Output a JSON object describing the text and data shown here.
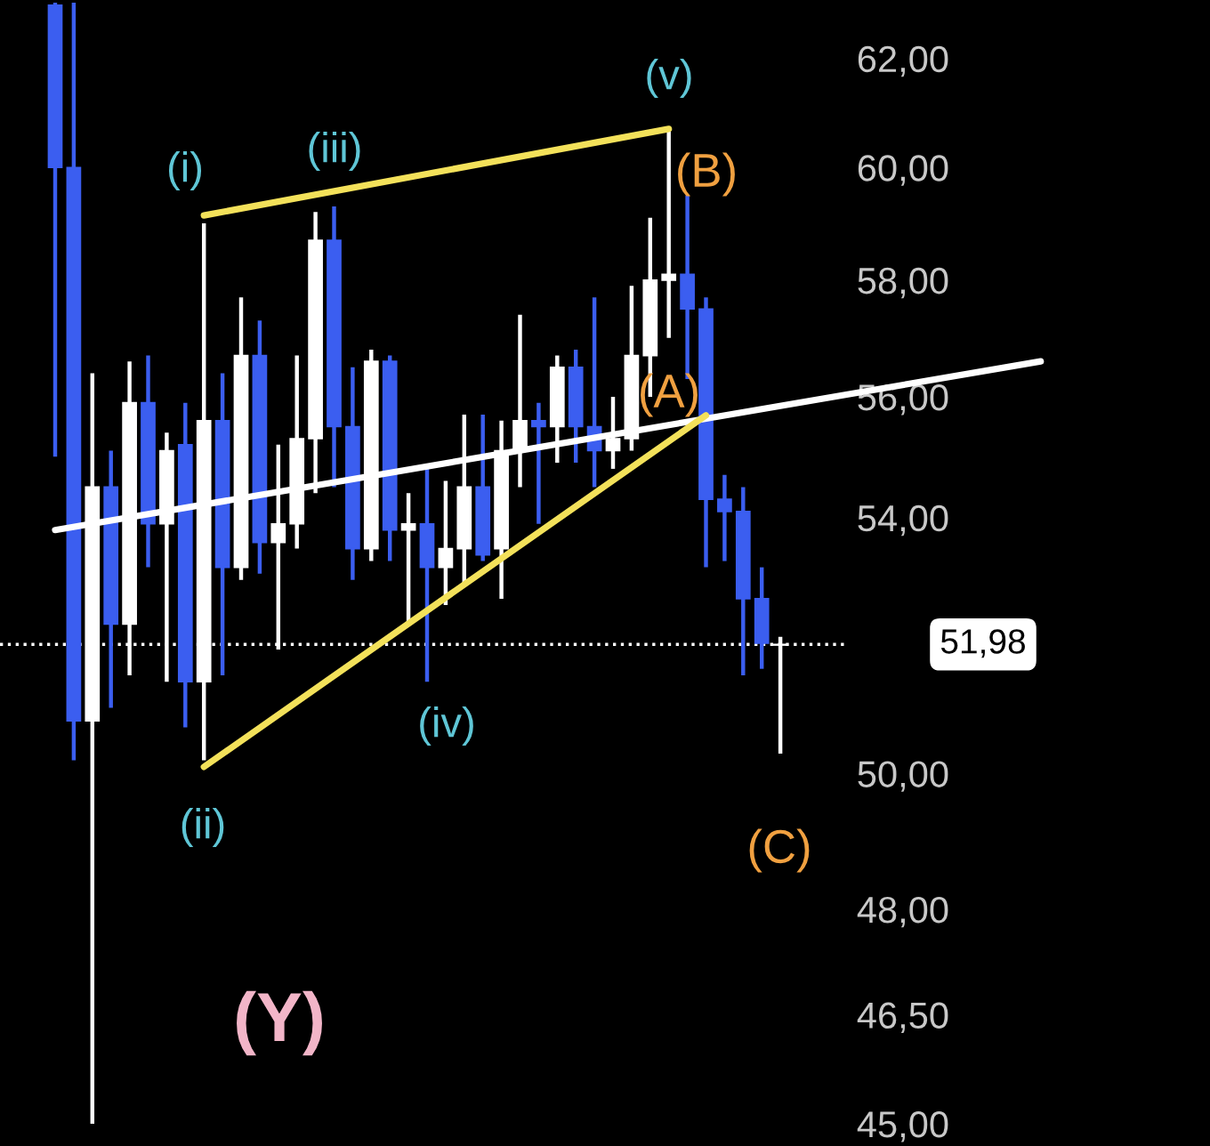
{
  "chart_data": {
    "type": "candlestick",
    "log": true,
    "grid": false,
    "tick_labels": "y",
    "categories": [
      null,
      null,
      null,
      null,
      null,
      null,
      null,
      null,
      null,
      null,
      null,
      null,
      null,
      null,
      null,
      null,
      null,
      null,
      null,
      null,
      null,
      null,
      null,
      null,
      null,
      null,
      null,
      null,
      null,
      null,
      null,
      null,
      null,
      null,
      null,
      null,
      null,
      null,
      null,
      null,
      null,
      null,
      null,
      null,
      null,
      null,
      null,
      null,
      null,
      null,
      null,
      null,
      null,
      null
    ],
    "ohlc": [
      [
        63.0,
        63.05,
        55.0,
        60.0
      ],
      [
        60.0,
        63.05,
        50.2,
        50.8
      ],
      [
        50.8,
        56.4,
        45.0,
        54.5
      ],
      [
        54.5,
        55.1,
        51.0,
        52.3
      ],
      [
        52.3,
        56.6,
        51.5,
        55.9
      ],
      [
        55.9,
        56.7,
        53.2,
        53.9
      ],
      [
        53.9,
        55.4,
        51.4,
        55.1
      ],
      [
        55.2,
        55.9,
        50.7,
        51.4
      ],
      [
        51.4,
        59.0,
        50.2,
        55.6
      ],
      [
        55.6,
        56.4,
        51.5,
        53.2
      ],
      [
        53.2,
        57.7,
        53.0,
        56.7
      ],
      [
        56.7,
        57.3,
        53.1,
        53.6
      ],
      [
        53.6,
        55.2,
        51.9,
        53.9
      ],
      [
        53.9,
        56.7,
        53.5,
        55.3
      ],
      [
        55.3,
        59.2,
        54.4,
        58.7
      ],
      [
        58.7,
        59.3,
        54.5,
        55.5
      ],
      [
        55.5,
        56.5,
        53.0,
        53.5
      ],
      [
        53.5,
        56.8,
        53.3,
        56.6
      ],
      [
        56.6,
        56.7,
        53.3,
        53.8
      ],
      [
        53.8,
        54.4,
        52.3,
        53.9
      ],
      [
        53.9,
        54.8,
        51.4,
        53.2
      ],
      [
        53.2,
        54.6,
        52.6,
        53.5
      ],
      [
        53.5,
        55.7,
        52.9,
        54.5
      ],
      [
        54.5,
        55.7,
        53.3,
        53.4
      ],
      [
        53.5,
        55.6,
        52.7,
        55.1
      ],
      [
        55.1,
        57.4,
        54.5,
        55.6
      ],
      [
        55.6,
        55.9,
        53.9,
        55.5
      ],
      [
        55.5,
        56.7,
        54.9,
        56.5
      ],
      [
        56.5,
        56.8,
        54.9,
        55.5
      ],
      [
        55.5,
        57.7,
        54.5,
        55.1
      ],
      [
        55.1,
        56.0,
        54.8,
        55.3
      ],
      [
        55.3,
        57.9,
        55.1,
        56.7
      ],
      [
        56.7,
        59.1,
        56.0,
        58.0
      ],
      [
        58.0,
        60.7,
        57.0,
        58.1
      ],
      [
        58.1,
        59.5,
        56.3,
        57.5
      ],
      [
        57.5,
        57.7,
        53.2,
        54.3
      ],
      [
        54.3,
        54.7,
        53.3,
        54.1
      ],
      [
        54.1,
        54.5,
        51.5,
        52.7
      ],
      [
        52.7,
        53.2,
        51.6,
        52.0
      ],
      [
        51.97,
        52.1,
        50.3,
        51.98
      ],
      null,
      null,
      null,
      null,
      null,
      null,
      null,
      null,
      null,
      null,
      null,
      null,
      null,
      null
    ],
    "colors": [
      "#3b5ef0",
      "#3b5ef0",
      "#ffffff",
      "#3b5ef0",
      "#ffffff",
      "#3b5ef0",
      "#ffffff",
      "#3b5ef0",
      "#ffffff",
      "#3b5ef0",
      "#ffffff",
      "#3b5ef0",
      "#ffffff",
      "#ffffff",
      "#ffffff",
      "#3b5ef0",
      "#3b5ef0",
      "#ffffff",
      "#3b5ef0",
      "#ffffff",
      "#3b5ef0",
      "#ffffff",
      "#ffffff",
      "#3b5ef0",
      "#ffffff",
      "#ffffff",
      "#3b5ef0",
      "#ffffff",
      "#3b5ef0",
      "#3b5ef0",
      "#ffffff",
      "#ffffff",
      "#ffffff",
      "#ffffff",
      "#3b5ef0",
      "#3b5ef0",
      "#3b5ef0",
      "#3b5ef0",
      "#3b5ef0",
      "#ffffff",
      null,
      null,
      null,
      null,
      null,
      null,
      null,
      null,
      null,
      null,
      null,
      null,
      null,
      null
    ],
    "series": [
      {
        "type": "line",
        "color": "#ffffff",
        "values": [
          53.8,
          null,
          null,
          null,
          null,
          null,
          null,
          null,
          null,
          null,
          null,
          null,
          null,
          null,
          null,
          null,
          null,
          null,
          null,
          null,
          null,
          null,
          null,
          null,
          null,
          null,
          null,
          null,
          null,
          null,
          null,
          null,
          null,
          null,
          null,
          null,
          null,
          null,
          null,
          null,
          null,
          null,
          null,
          null,
          null,
          null,
          null,
          null,
          null,
          null,
          null,
          null,
          null,
          56.6
        ]
      },
      {
        "type": "line",
        "color": "#f3e15a",
        "values": [
          null,
          null,
          null,
          null,
          null,
          null,
          null,
          null,
          59.14,
          null,
          null,
          null,
          null,
          null,
          null,
          null,
          null,
          null,
          null,
          null,
          null,
          null,
          null,
          null,
          null,
          null,
          null,
          null,
          null,
          null,
          null,
          null,
          null,
          60.7,
          null,
          null,
          null,
          null,
          null,
          null,
          null,
          null,
          null,
          null,
          null,
          null,
          null,
          null,
          null,
          null,
          null,
          null,
          null,
          null
        ]
      },
      {
        "type": "line",
        "color": "#f3e15a",
        "values": [
          null,
          null,
          null,
          null,
          null,
          null,
          null,
          null,
          50.1,
          null,
          null,
          null,
          null,
          null,
          null,
          null,
          null,
          null,
          null,
          null,
          null,
          null,
          null,
          null,
          null,
          null,
          null,
          null,
          null,
          null,
          null,
          null,
          null,
          null,
          null,
          55.69,
          null,
          null,
          null,
          null,
          null,
          null,
          null,
          null,
          null,
          null,
          null,
          null,
          null,
          null,
          null,
          null,
          null,
          null
        ]
      }
    ],
    "ylim": [
      44.7,
      63.1
    ],
    "yticks": [
      {
        "value": 62,
        "label": "62,00"
      },
      {
        "value": 60,
        "label": "60,00"
      },
      {
        "value": 58,
        "label": "58,00"
      },
      {
        "value": 56,
        "label": "56,00"
      },
      {
        "value": 54,
        "label": "54,00"
      },
      {
        "value": 50,
        "label": "50,00"
      },
      {
        "value": 48,
        "label": "48,00"
      },
      {
        "value": 46.5,
        "label": "46,50"
      },
      {
        "value": 45,
        "label": "45,00"
      }
    ],
    "ref_lines": [
      {
        "axis": "y",
        "value": 51.98,
        "label": "51,98",
        "color": "#ffffff",
        "line_style": "dotted"
      }
    ],
    "annotations": [
      "(i)",
      "(iii)",
      "(v)",
      "(ii)",
      "(iv)",
      "(B)",
      "(A)",
      "(C)",
      "(Y)"
    ]
  }
}
